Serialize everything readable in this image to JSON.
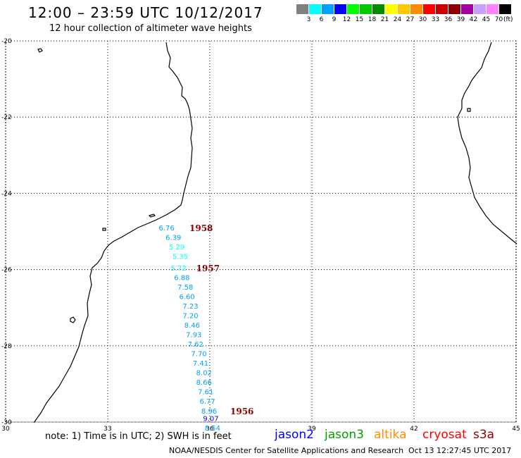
{
  "header": {
    "title": "12:00 – 23:59 UTC 10/12/2017",
    "subtitle": "12 hour collection of altimeter wave heights"
  },
  "legend": {
    "unit": "(ft)",
    "bins": [
      {
        "label": "3",
        "color": "#808080"
      },
      {
        "label": "6",
        "color": "#00ffff"
      },
      {
        "label": "9",
        "color": "#00a0ff"
      },
      {
        "label": "12",
        "color": "#0000ff"
      },
      {
        "label": "15",
        "color": "#00ff00"
      },
      {
        "label": "18",
        "color": "#00c800"
      },
      {
        "label": "21",
        "color": "#008c00"
      },
      {
        "label": "24",
        "color": "#ffff00"
      },
      {
        "label": "27",
        "color": "#ffc800"
      },
      {
        "label": "30",
        "color": "#ff8c00"
      },
      {
        "label": "33",
        "color": "#ff0000"
      },
      {
        "label": "36",
        "color": "#c80000"
      },
      {
        "label": "39",
        "color": "#8c0000"
      },
      {
        "label": "42",
        "color": "#a000a0"
      },
      {
        "label": "45",
        "color": "#c8a0ff"
      },
      {
        "label": "70",
        "color": "#ff82ff"
      },
      {
        "label": "",
        "color": "#000000"
      }
    ]
  },
  "map": {
    "lon_ticks": [
      "30",
      "33",
      "36",
      "39",
      "42",
      "45"
    ],
    "lat_ticks": [
      "-20",
      "-22",
      "-24",
      "-26",
      "-28",
      "-30"
    ],
    "lon_range": [
      30,
      45
    ],
    "lat_range": [
      -30,
      -20
    ],
    "observations": [
      {
        "value": "6.76",
        "lat": -24.9,
        "lon": 34.5
      },
      {
        "value": "6.39",
        "lat": -25.15,
        "lon": 34.7
      },
      {
        "value": "5.29",
        "lat": -25.4,
        "lon": 34.8
      },
      {
        "value": "5.35",
        "lat": -25.65,
        "lon": 34.9
      },
      {
        "value": "5.72",
        "lat": -25.95,
        "lon": 34.85
      },
      {
        "value": "6.88",
        "lat": -26.2,
        "lon": 34.95
      },
      {
        "value": "7.58",
        "lat": -26.45,
        "lon": 35.05
      },
      {
        "value": "6.60",
        "lat": -26.7,
        "lon": 35.1
      },
      {
        "value": "7.23",
        "lat": -26.95,
        "lon": 35.2
      },
      {
        "value": "7.20",
        "lat": -27.2,
        "lon": 35.2
      },
      {
        "value": "8.46",
        "lat": -27.45,
        "lon": 35.25
      },
      {
        "value": "7.93",
        "lat": -27.7,
        "lon": 35.3
      },
      {
        "value": "7.62",
        "lat": -27.95,
        "lon": 35.35
      },
      {
        "value": "7.70",
        "lat": -28.2,
        "lon": 35.45
      },
      {
        "value": "7.41",
        "lat": -28.45,
        "lon": 35.5
      },
      {
        "value": "8.02",
        "lat": -28.7,
        "lon": 35.6
      },
      {
        "value": "8.66",
        "lat": -28.95,
        "lon": 35.6
      },
      {
        "value": "7.61",
        "lat": -29.2,
        "lon": 35.65
      },
      {
        "value": "6.77",
        "lat": -29.45,
        "lon": 35.7
      },
      {
        "value": "8.96",
        "lat": -29.7,
        "lon": 35.75
      },
      {
        "value": "9.07",
        "lat": -29.9,
        "lon": 35.8
      },
      {
        "value": "8.54",
        "lat": -30.15,
        "lon": 35.85
      }
    ],
    "time_labels": [
      {
        "text": "1958",
        "lat": -24.9,
        "lon": 35.4
      },
      {
        "text": "1957",
        "lat": -25.95,
        "lon": 35.6
      },
      {
        "text": "1956",
        "lat": -29.7,
        "lon": 36.6
      }
    ]
  },
  "footer": {
    "note": "note: 1) Time is in UTC; 2) SWH is in feet",
    "satellites": [
      {
        "name": "jason2",
        "color": "#0000ff"
      },
      {
        "name": "jason3",
        "color": "#00a000"
      },
      {
        "name": "altika",
        "color": "#ff8c00"
      },
      {
        "name": "cryosat",
        "color": "#ff0000"
      },
      {
        "name": "s3a",
        "color": "#8c0000"
      }
    ],
    "agency": "NOAA/NESDIS Center for Satellite Applications and Research",
    "timestamp": "Oct 13 12:27:45 UTC 2017"
  }
}
